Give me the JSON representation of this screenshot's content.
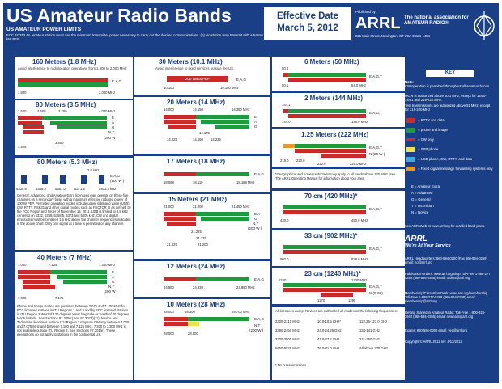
{
  "header": {
    "title": "US Amateur Radio Bands",
    "subtitle": "US AMATEUR POWER LIMITS",
    "note": "FCC 97.313   An amateur station must use the minimum transmitter power necessary to carry out the desired communications.  (b) No station may transmit with a transmitter power exceeding 1.5 kW PEP.",
    "effective_line1": "Effective Date",
    "effective_line2": "March 5, 2012",
    "published_by": "Published by:",
    "arrl": "ARRL",
    "tagline": "The national association for AMATEUR RADIO®",
    "address": "225 Main Street, Newington, CT USA  06111-1494"
  },
  "bands": {
    "m160": {
      "title": "160 Meters (1.8 MHz)",
      "note": "Avoid interference to radiolocation operations from 1.900 to 2.000 MHz",
      "l1": "1.800",
      "l2": "2.000 MHz",
      "cls": "E,A,G"
    },
    "m80": {
      "title": "80 Meters (3.5 MHz)",
      "a": "3.500",
      "b": "3.600",
      "c": "3.700",
      "d": "4.000 MHz",
      "e": "3.525",
      "f": "3.800",
      "cE": "E",
      "cA": "A",
      "cG": "G",
      "cNT": "N,T",
      "cNTp": "(200 W )"
    },
    "m60": {
      "title": "60 Meters (5.3 MHz)",
      "w": "2.8 kHz",
      "cls": "E,A,G",
      "p": "(100 W )",
      "f1": "5330.5",
      "f2": "5346.5",
      "f3": "5357.0",
      "f4": "5371.5",
      "f5": "5403.5 kHz",
      "text": "General, Advanced, and Amateur Extra licensees may operate on these five channels on a secondary basis with a maximum effective radiated power of 100 W PEP. Permitted operating modes include upper sideband voice (USB), CW, RTTY, PSK31 and other digital modes such as PACTOR III as defined by the FCC Report and Order of November 18, 2011. USB is limited to 2.8 kHz centered on 5332, 5348, 5358.5, 5373 and 5405 kHz. CW and digital emissions must be centered 1.5 kHz above the channel frequencies indicated in the above chart. Only one signal at a time is permitted on any channel."
    },
    "m40": {
      "title": "40 Meters (7 MHz)",
      "a": "7.000",
      "b": "7.125",
      "c": "7.300 MHz",
      "d": "7.025",
      "e": "7.175",
      "cE": "E",
      "cA": "A",
      "cG": "G",
      "cNT": "N,T",
      "cNTp": "(200 W )",
      "text": "Phone and Image modes are permitted between 7.075 and 7.100 MHz for FCC licensed stations in ITU Regions 1 and 3 and by FCC licensed stations in ITU Region 2 West of 130 degrees West longitude or South of 20 degrees North latitude. See Sections 97.305(c) and 97.307(f)(11). Novice and Technician licensees outside ITU Region 2 may use CW only between 7.025 and 7.075 MHz and between 7.100 and 7.125 MHz. 7.200 to 7.300 MHz is not available outside ITU Region 2. See Sections 97.301(e). These exemptions do not apply to stations in the continental US."
    },
    "m30": {
      "title": "30 Meters (10.1 MHz)",
      "note": "Avoid interference to fixed services outside the US.",
      "pep": "200 Watts PEP",
      "l1": "10.100",
      "l2": "10.150 MHz",
      "cls": "E,A,G"
    },
    "m20": {
      "title": "20 Meters (14 MHz)",
      "a": "14.000",
      "b": "14.150",
      "c": "14.350 MHz",
      "d": "14.025",
      "e": "14.150",
      "f": "14.225",
      "g": "14.175",
      "cE": "E",
      "cA": "A",
      "cG": "G"
    },
    "m17": {
      "title": "17 Meters (18 MHz)",
      "l1": "18.068",
      "l2": "18.110",
      "l3": "18.168 MHz",
      "cls": "E,A,G"
    },
    "m15": {
      "title": "15 Meters (21 MHz)",
      "a": "21.000",
      "b": "21.200",
      "c": "21.450 MHz",
      "d": "21.025",
      "e": "21.225",
      "f": "21.275",
      "g": "21.200",
      "cE": "E,A",
      "cG": "G",
      "cNT": "N,T",
      "cNTp": "(200 W )"
    },
    "m12": {
      "title": "12 Meters (24 MHz)",
      "l1": "24.890",
      "l2": "24.930",
      "l3": "24.990 MHz",
      "cls": "E,A,G"
    },
    "m10": {
      "title": "10 Meters (28 MHz)",
      "a": "28.000",
      "b": "28.300",
      "c": "29.700 MHz",
      "d": "28.000",
      "e": "28.500",
      "cls": "E,A,G",
      "cNT": "N,T",
      "cNTp": "(200 W )"
    },
    "m6": {
      "title": "6 Meters (50 MHz)",
      "l1": "50.0",
      "l2": "50.1",
      "l3": "54.0 MHz",
      "cls": "E,A,G,T"
    },
    "m2": {
      "title": "2 Meters (144 MHz)",
      "l1": "144.0",
      "l2": "144.1",
      "l3": "148.0 MHz",
      "cls": "E,A,G,T"
    },
    "m125": {
      "title": "1.25 Meters (222 MHz)",
      "l1": "219.0",
      "l2": "220.0",
      "l3": "222.0",
      "l4": "225.0 MHz",
      "cls": "E,A,G,T",
      "cN": "N (25 W )"
    },
    "geo": "*Geographical and power restrictions may apply to all bands above 420 MHz. See The ARRL Operating Manual for information about your area.",
    "m70": {
      "title": "70 cm (420 MHz)*",
      "l1": "420.0",
      "l2": "450.0 MHz",
      "cls": "E,A,G,T"
    },
    "m33": {
      "title": "33 cm (902 MHz)*",
      "l1": "902.0",
      "l2": "928.0 MHz",
      "cls": "E,A,G,T"
    },
    "m23": {
      "title": "23 cm (1240 MHz)*",
      "l1": "1240",
      "l2": "1300 MHz",
      "l3": "1270",
      "l4": "1295",
      "cls": "E,A,G,T",
      "cN": "N (5 W )"
    },
    "above": {
      "head": "All licensees except Novices are authorized all modes on the following frequencies:",
      "rows": [
        [
          "2300-2310 MHz",
          "10.0-10.5 GHz*",
          "122.25-123.0 GHz"
        ],
        [
          "2390-2450 MHz",
          "24.0-24.25 GHz",
          "134-141 GHz"
        ],
        [
          "3300-3500 MHz",
          "47.0-47.2 GHz",
          "241-250 GHz"
        ],
        [
          "5650-5925 MHz",
          "76.0-81.0 GHz",
          "All above 275 GHz"
        ]
      ],
      "foot": "* No pulse emissions"
    }
  },
  "key": {
    "title": "KEY",
    "n1": "Note:",
    "n2": "CW operation is permitted throughout all amateur bands.",
    "n3": "MCW is authorized above 50.1 MHz, except for 144.0-144.1 and 219-220 MHz.",
    "n4": "Test transmissions are authorized above 51 MHz, except for 219-220 MHz",
    "items": [
      "= RTTY and data",
      "= phone and image",
      "= CW only",
      "= SSB phone",
      "= USB phone, CW, RTTY, and data",
      "= Fixed digital message forwarding systems only"
    ],
    "lic": [
      "E = Amateur Extra",
      "A = Advanced",
      "G = General",
      "T = Technician",
      "N = Novice"
    ],
    "see": "See ARRLWeb at www.arrl.org for detailed band plans.",
    "arrl": "ARRL",
    "serve": "We're At Your Service",
    "hq": "ARRL Headquarters: 860-594-0200 (Fax 860-594-0259) email: hq@arrl.org",
    "pub": "Publication Orders: www.arrl.org/shop Toll-Free 1-888-277-5289 (860-594-0355) email: orders@arrl.org",
    "mem": "Membership/Circulation Desk: www.arrl.org/membership Toll-Free 1-888-277-5289 (860-594-0338) email: membership@arrl.org",
    "start": "Getting Started in Amateur Radio: Toll-Free 1-800-326-3942 (860-594-0355) email: newham@arrl.org",
    "exams": "Exams:  860-594-0300   email: vec@arrl.org",
    "copy": "Copyright © ARRL 2012       rev. 4/12/2012"
  }
}
